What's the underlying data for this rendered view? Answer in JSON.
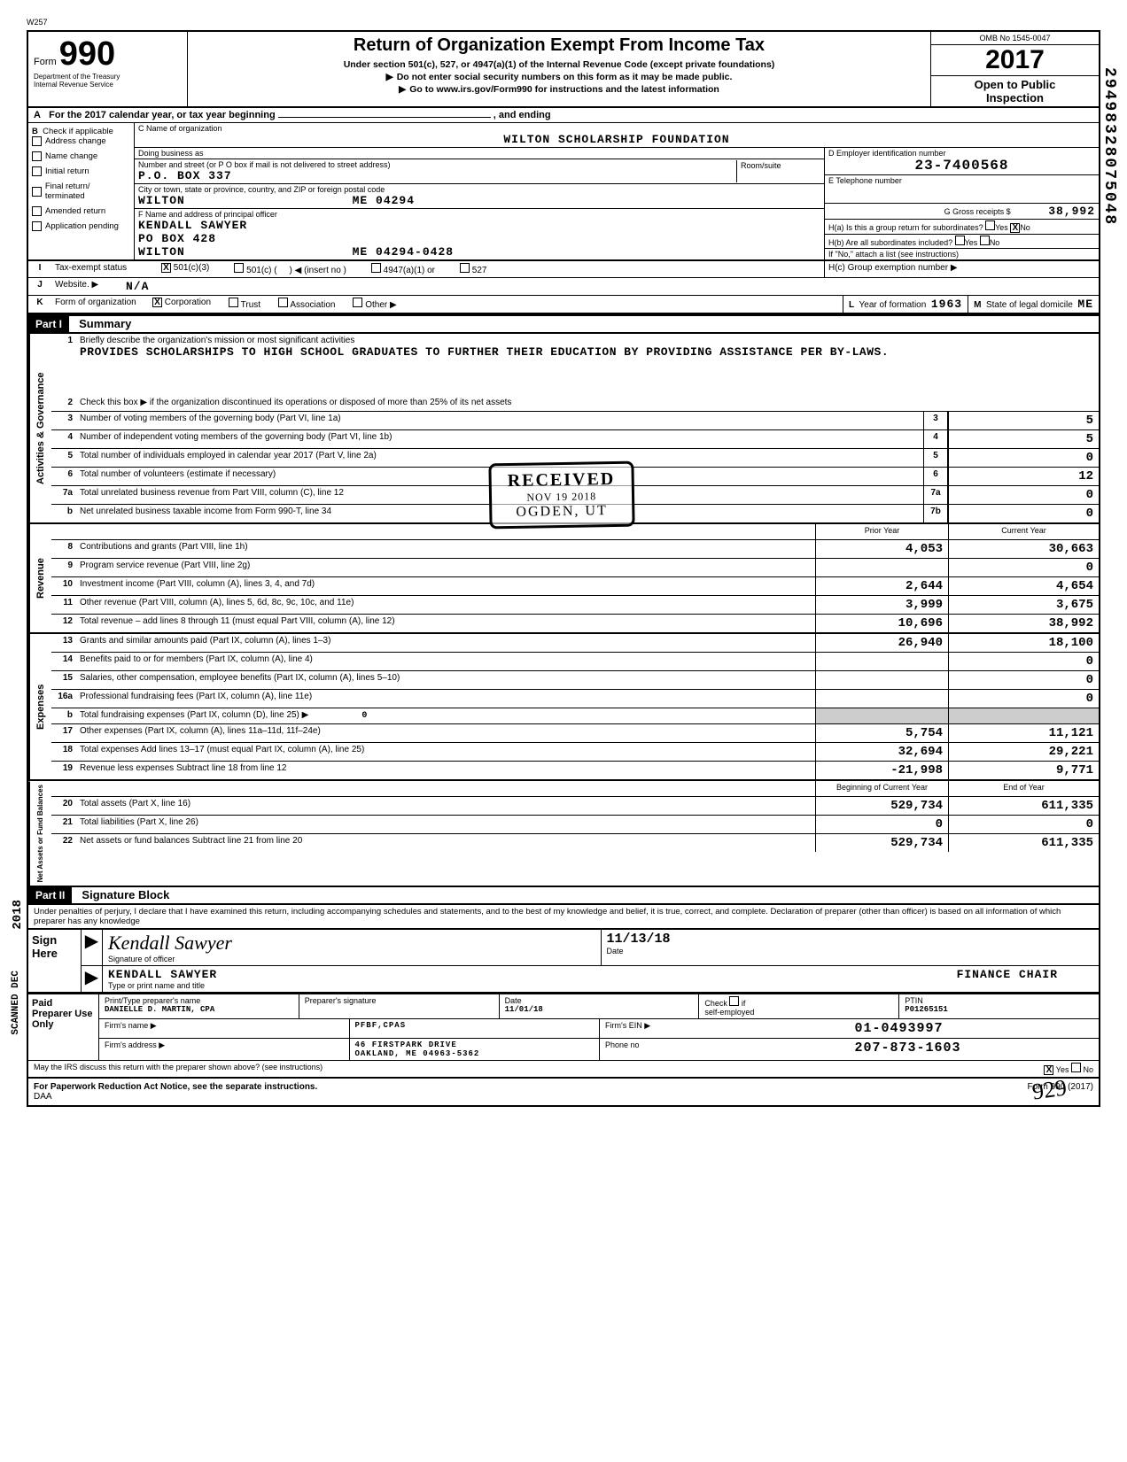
{
  "top_code": "W257",
  "form": {
    "label": "Form",
    "number": "990",
    "dept1": "Department of the Treasury",
    "dept2": "Internal Revenue Service"
  },
  "header": {
    "title": "Return of Organization Exempt From Income Tax",
    "sub1": "Under section 501(c), 527, or 4947(a)(1) of the Internal Revenue Code (except private foundations)",
    "sub2": "Do not enter social security numbers on this form as it may be made public.",
    "sub3": "Go to www.irs.gov/Form990 for instructions and the latest information",
    "omb": "OMB No 1545-0047",
    "year": "2017",
    "open1": "Open to Public",
    "open2": "Inspection"
  },
  "section_a": {
    "label_a": "A",
    "text": "For the 2017 calendar year, or tax year beginning",
    "ending": ", and ending"
  },
  "col_b": {
    "label": "B",
    "check_if": "Check if applicable",
    "items": [
      "Address change",
      "Name change",
      "Initial return",
      "Final return/ terminated",
      "Amended return",
      "Application pending"
    ]
  },
  "col_c": {
    "name_label": "C  Name of organization",
    "name": "WILTON SCHOLARSHIP FOUNDATION",
    "dba_label": "Doing business as",
    "street_label": "Number and street (or P O  box if mail is not delivered to street address)",
    "street": "P.O. BOX 337",
    "room_label": "Room/suite",
    "city_label": "City or town, state or province, country, and ZIP or foreign postal code",
    "city": "WILTON",
    "state_zip": "ME  04294",
    "officer_label": "F  Name and address of principal officer",
    "officer_name": "KENDALL SAWYER",
    "officer_street": "PO BOX 428",
    "officer_city": "WILTON",
    "officer_state_zip": "ME  04294-0428"
  },
  "col_d": {
    "ein_label": "D  Employer identification number",
    "ein": "23-7400568",
    "phone_label": "E  Telephone number",
    "gross_label": "G  Gross receipts $",
    "gross": "38,992",
    "h_a": "H(a) Is this a group return for subordinates?",
    "h_a_yes": "Yes",
    "h_a_no": "No",
    "h_a_checked": "X",
    "h_b": "H(b) Are all subordinates included?",
    "h_b_yes": "Yes",
    "h_b_no": "No",
    "h_note": "If \"No,\" attach a list  (see instructions)",
    "h_c": "H(c) Group exemption number ▶"
  },
  "line_i": {
    "label": "I",
    "text": "Tax-exempt status",
    "c1": "501(c)(3)",
    "c1_checked": "X",
    "c2": "501(c)",
    "c2_insert": "◀ (insert no )",
    "c3": "4947(a)(1) or",
    "c4": "527"
  },
  "line_j": {
    "label": "J",
    "text": "Website. ▶",
    "value": "N/A"
  },
  "line_k": {
    "label": "K",
    "text": "Form of organization",
    "corp": "Corporation",
    "corp_checked": "X",
    "trust": "Trust",
    "assoc": "Association",
    "other": "Other ▶",
    "l_label": "L",
    "l_text": "Year of formation",
    "l_value": "1963",
    "m_label": "M",
    "m_text": "State of legal domicile",
    "m_value": "ME"
  },
  "part1": {
    "part": "Part I",
    "title": "Summary",
    "side_gov": "Activities & Governance",
    "side_rev": "Revenue",
    "side_exp": "Expenses",
    "side_net": "Net Assets or\nFund Balances",
    "q1_label": "1",
    "q1_text": "Briefly describe the organization's mission or most significant activities",
    "q1_value": "PROVIDES SCHOLARSHIPS TO HIGH SCHOOL GRADUATES TO FURTHER THEIR EDUCATION BY PROVIDING ASSISTANCE PER BY-LAWS.",
    "q2_label": "2",
    "q2_text": "Check this box ▶        if the organization discontinued its operations or disposed of more than 25% of its net assets",
    "rows_gov": [
      {
        "n": "3",
        "label": "Number of voting members of the governing body (Part VI, line 1a)",
        "box": "3",
        "val": "5"
      },
      {
        "n": "4",
        "label": "Number of independent voting members of the governing body (Part VI, line 1b)",
        "box": "4",
        "val": "5"
      },
      {
        "n": "5",
        "label": "Total number of individuals employed in calendar year 2017 (Part V, line 2a)",
        "box": "5",
        "val": "0"
      },
      {
        "n": "6",
        "label": "Total number of volunteers (estimate if necessary)",
        "box": "6",
        "val": "12"
      },
      {
        "n": "7a",
        "label": "Total unrelated business revenue from Part VIII, column (C), line 12",
        "box": "7a",
        "val": "0"
      },
      {
        "n": "b",
        "label": "Net unrelated business taxable income from Form 990-T, line 34",
        "box": "7b",
        "val": "0"
      }
    ],
    "prior_header": "Prior Year",
    "current_header": "Current Year",
    "rows_rev": [
      {
        "n": "8",
        "label": "Contributions and grants (Part VIII, line 1h)",
        "p": "4,053",
        "c": "30,663"
      },
      {
        "n": "9",
        "label": "Program service revenue (Part VIII, line 2g)",
        "p": "",
        "c": "0"
      },
      {
        "n": "10",
        "label": "Investment income (Part VIII, column (A), lines 3, 4, and 7d)",
        "p": "2,644",
        "c": "4,654"
      },
      {
        "n": "11",
        "label": "Other revenue (Part VIII, column (A), lines 5, 6d, 8c, 9c, 10c, and 11e)",
        "p": "3,999",
        "c": "3,675"
      },
      {
        "n": "12",
        "label": "Total revenue – add lines 8 through 11 (must equal Part VIII, column (A), line 12)",
        "p": "10,696",
        "c": "38,992"
      }
    ],
    "rows_exp": [
      {
        "n": "13",
        "label": "Grants and similar amounts paid (Part IX, column (A), lines 1–3)",
        "p": "26,940",
        "c": "18,100"
      },
      {
        "n": "14",
        "label": "Benefits paid to or for members (Part IX, column (A), line 4)",
        "p": "",
        "c": "0"
      },
      {
        "n": "15",
        "label": "Salaries, other compensation, employee benefits (Part IX, column (A), lines 5–10)",
        "p": "",
        "c": "0"
      },
      {
        "n": "16a",
        "label": "Professional fundraising fees (Part IX, column (A), line 11e)",
        "p": "",
        "c": "0"
      },
      {
        "n": "b",
        "label": "Total fundraising expenses (Part IX, column (D), line 25) ▶",
        "extra": "0",
        "p": "shaded",
        "c": "shaded"
      },
      {
        "n": "17",
        "label": "Other expenses (Part IX, column (A), lines 11a–11d, 11f–24e)",
        "p": "5,754",
        "c": "11,121"
      },
      {
        "n": "18",
        "label": "Total expenses  Add lines 13–17 (must equal Part IX, column (A), line 25)",
        "p": "32,694",
        "c": "29,221"
      },
      {
        "n": "19",
        "label": "Revenue less expenses  Subtract line 18 from line 12",
        "p": "-21,998",
        "c": "9,771"
      }
    ],
    "net_header_prior": "Beginning of Current Year",
    "net_header_curr": "End of Year",
    "rows_net": [
      {
        "n": "20",
        "label": "Total assets (Part X, line 16)",
        "p": "529,734",
        "c": "611,335"
      },
      {
        "n": "21",
        "label": "Total liabilities (Part X, line 26)",
        "p": "0",
        "c": "0"
      },
      {
        "n": "22",
        "label": "Net assets or fund balances  Subtract line 21 from line 20",
        "p": "529,734",
        "c": "611,335"
      }
    ]
  },
  "part2": {
    "part": "Part II",
    "title": "Signature Block",
    "declaration": "Under penalties of perjury, I declare that I have examined this return, including accompanying schedules and statements, and to the best of my knowledge and belief, it is true, correct, and complete. Declaration of preparer (other than officer) is based on all information of which preparer has any knowledge",
    "sign_label": "Sign Here",
    "sig_script": "Kendall Sawyer",
    "sig_officer_label": "Signature of officer",
    "sig_date": "11/13/18",
    "sig_date_label": "Date",
    "name_title": "KENDALL SAWYER",
    "role": "FINANCE CHAIR",
    "name_label": "Type or print name and title",
    "paid_label": "Paid Preparer Use Only",
    "prep_name_label": "Print/Type preparer's name",
    "prep_name": "DANIELLE D. MARTIN, CPA",
    "prep_sig_label": "Preparer's signature",
    "prep_date_label": "Date",
    "prep_date": "11/01/18",
    "check_label": "Check",
    "self_emp": "self-employed",
    "ptin_label": "PTIN",
    "ptin": "P01265151",
    "firm_name_label": "Firm's name    ▶",
    "firm_name": "PFBF,CPAS",
    "firm_ein_label": "Firm's EIN ▶",
    "firm_ein": "01-0493997",
    "firm_addr_label": "Firm's address  ▶",
    "firm_street": "46 FIRSTPARK DRIVE",
    "firm_city": "OAKLAND, ME  04963-5362",
    "phone_label": "Phone no",
    "phone": "207-873-1603",
    "discuss": "May the IRS discuss this return with the preparer shown above? (see instructions)",
    "discuss_yes": "Yes",
    "discuss_no": "No",
    "discuss_checked": "X"
  },
  "footer": {
    "pra": "For Paperwork Reduction Act Notice, see the separate instructions.",
    "daa": "DAA",
    "form_ref": "Form 990 (2017)"
  },
  "stamp": {
    "r1": "RECEIVED",
    "r2": "NOV 19 2018",
    "r3": "OGDEN, UT"
  },
  "vertical_code": "29498328075048",
  "side_year1": "2018",
  "side_year2": "SCANNED DEC",
  "initials": "929"
}
